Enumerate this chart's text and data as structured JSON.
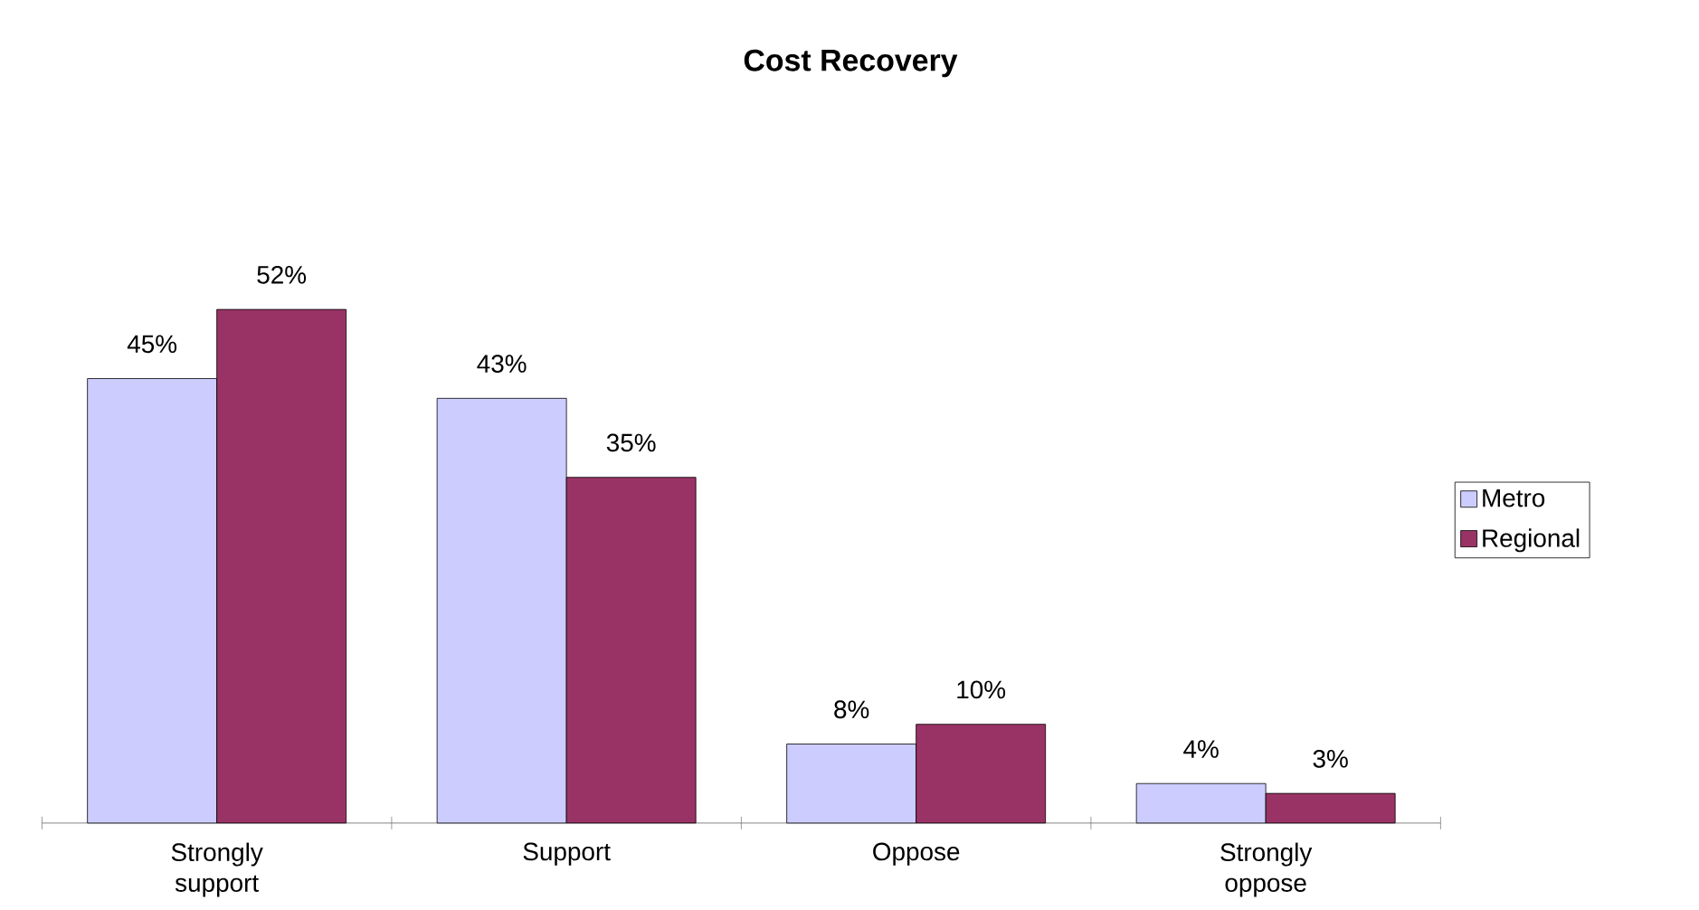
{
  "chart_data": {
    "type": "bar",
    "title": "Cost Recovery",
    "categories": [
      "Strongly support",
      "Support",
      "Oppose",
      "Strongly oppose"
    ],
    "series": [
      {
        "name": "Metro",
        "color": "#ccccff",
        "values": [
          45,
          43,
          8,
          4
        ],
        "value_labels": [
          "45%",
          "43%",
          "8%",
          "4%"
        ]
      },
      {
        "name": "Regional",
        "color": "#993366",
        "values": [
          52,
          35,
          10,
          3
        ],
        "value_labels": [
          "52%",
          "35%",
          "10%",
          "3%"
        ]
      }
    ],
    "legend": "right"
  }
}
